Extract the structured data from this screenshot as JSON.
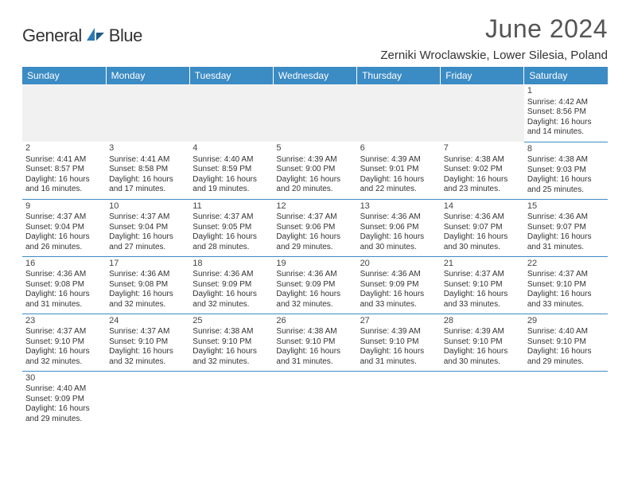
{
  "brand": {
    "name_a": "General",
    "name_b": "Blue"
  },
  "title": "June 2024",
  "location": "Zerniki Wroclawskie, Lower Silesia, Poland",
  "colors": {
    "header_bg": "#3b8bc4",
    "header_fg": "#ffffff",
    "cell_border": "#3b8bc4",
    "text": "#333333",
    "title_fg": "#555555",
    "empty_row_bg": "#f1f1f1"
  },
  "day_headers": [
    "Sunday",
    "Monday",
    "Tuesday",
    "Wednesday",
    "Thursday",
    "Friday",
    "Saturday"
  ],
  "weeks": [
    [
      null,
      null,
      null,
      null,
      null,
      null,
      {
        "d": "1",
        "sr": "Sunrise: 4:42 AM",
        "ss": "Sunset: 8:56 PM",
        "dl1": "Daylight: 16 hours",
        "dl2": "and 14 minutes."
      }
    ],
    [
      {
        "d": "2",
        "sr": "Sunrise: 4:41 AM",
        "ss": "Sunset: 8:57 PM",
        "dl1": "Daylight: 16 hours",
        "dl2": "and 16 minutes."
      },
      {
        "d": "3",
        "sr": "Sunrise: 4:41 AM",
        "ss": "Sunset: 8:58 PM",
        "dl1": "Daylight: 16 hours",
        "dl2": "and 17 minutes."
      },
      {
        "d": "4",
        "sr": "Sunrise: 4:40 AM",
        "ss": "Sunset: 8:59 PM",
        "dl1": "Daylight: 16 hours",
        "dl2": "and 19 minutes."
      },
      {
        "d": "5",
        "sr": "Sunrise: 4:39 AM",
        "ss": "Sunset: 9:00 PM",
        "dl1": "Daylight: 16 hours",
        "dl2": "and 20 minutes."
      },
      {
        "d": "6",
        "sr": "Sunrise: 4:39 AM",
        "ss": "Sunset: 9:01 PM",
        "dl1": "Daylight: 16 hours",
        "dl2": "and 22 minutes."
      },
      {
        "d": "7",
        "sr": "Sunrise: 4:38 AM",
        "ss": "Sunset: 9:02 PM",
        "dl1": "Daylight: 16 hours",
        "dl2": "and 23 minutes."
      },
      {
        "d": "8",
        "sr": "Sunrise: 4:38 AM",
        "ss": "Sunset: 9:03 PM",
        "dl1": "Daylight: 16 hours",
        "dl2": "and 25 minutes."
      }
    ],
    [
      {
        "d": "9",
        "sr": "Sunrise: 4:37 AM",
        "ss": "Sunset: 9:04 PM",
        "dl1": "Daylight: 16 hours",
        "dl2": "and 26 minutes."
      },
      {
        "d": "10",
        "sr": "Sunrise: 4:37 AM",
        "ss": "Sunset: 9:04 PM",
        "dl1": "Daylight: 16 hours",
        "dl2": "and 27 minutes."
      },
      {
        "d": "11",
        "sr": "Sunrise: 4:37 AM",
        "ss": "Sunset: 9:05 PM",
        "dl1": "Daylight: 16 hours",
        "dl2": "and 28 minutes."
      },
      {
        "d": "12",
        "sr": "Sunrise: 4:37 AM",
        "ss": "Sunset: 9:06 PM",
        "dl1": "Daylight: 16 hours",
        "dl2": "and 29 minutes."
      },
      {
        "d": "13",
        "sr": "Sunrise: 4:36 AM",
        "ss": "Sunset: 9:06 PM",
        "dl1": "Daylight: 16 hours",
        "dl2": "and 30 minutes."
      },
      {
        "d": "14",
        "sr": "Sunrise: 4:36 AM",
        "ss": "Sunset: 9:07 PM",
        "dl1": "Daylight: 16 hours",
        "dl2": "and 30 minutes."
      },
      {
        "d": "15",
        "sr": "Sunrise: 4:36 AM",
        "ss": "Sunset: 9:07 PM",
        "dl1": "Daylight: 16 hours",
        "dl2": "and 31 minutes."
      }
    ],
    [
      {
        "d": "16",
        "sr": "Sunrise: 4:36 AM",
        "ss": "Sunset: 9:08 PM",
        "dl1": "Daylight: 16 hours",
        "dl2": "and 31 minutes."
      },
      {
        "d": "17",
        "sr": "Sunrise: 4:36 AM",
        "ss": "Sunset: 9:08 PM",
        "dl1": "Daylight: 16 hours",
        "dl2": "and 32 minutes."
      },
      {
        "d": "18",
        "sr": "Sunrise: 4:36 AM",
        "ss": "Sunset: 9:09 PM",
        "dl1": "Daylight: 16 hours",
        "dl2": "and 32 minutes."
      },
      {
        "d": "19",
        "sr": "Sunrise: 4:36 AM",
        "ss": "Sunset: 9:09 PM",
        "dl1": "Daylight: 16 hours",
        "dl2": "and 32 minutes."
      },
      {
        "d": "20",
        "sr": "Sunrise: 4:36 AM",
        "ss": "Sunset: 9:09 PM",
        "dl1": "Daylight: 16 hours",
        "dl2": "and 33 minutes."
      },
      {
        "d": "21",
        "sr": "Sunrise: 4:37 AM",
        "ss": "Sunset: 9:10 PM",
        "dl1": "Daylight: 16 hours",
        "dl2": "and 33 minutes."
      },
      {
        "d": "22",
        "sr": "Sunrise: 4:37 AM",
        "ss": "Sunset: 9:10 PM",
        "dl1": "Daylight: 16 hours",
        "dl2": "and 33 minutes."
      }
    ],
    [
      {
        "d": "23",
        "sr": "Sunrise: 4:37 AM",
        "ss": "Sunset: 9:10 PM",
        "dl1": "Daylight: 16 hours",
        "dl2": "and 32 minutes."
      },
      {
        "d": "24",
        "sr": "Sunrise: 4:37 AM",
        "ss": "Sunset: 9:10 PM",
        "dl1": "Daylight: 16 hours",
        "dl2": "and 32 minutes."
      },
      {
        "d": "25",
        "sr": "Sunrise: 4:38 AM",
        "ss": "Sunset: 9:10 PM",
        "dl1": "Daylight: 16 hours",
        "dl2": "and 32 minutes."
      },
      {
        "d": "26",
        "sr": "Sunrise: 4:38 AM",
        "ss": "Sunset: 9:10 PM",
        "dl1": "Daylight: 16 hours",
        "dl2": "and 31 minutes."
      },
      {
        "d": "27",
        "sr": "Sunrise: 4:39 AM",
        "ss": "Sunset: 9:10 PM",
        "dl1": "Daylight: 16 hours",
        "dl2": "and 31 minutes."
      },
      {
        "d": "28",
        "sr": "Sunrise: 4:39 AM",
        "ss": "Sunset: 9:10 PM",
        "dl1": "Daylight: 16 hours",
        "dl2": "and 30 minutes."
      },
      {
        "d": "29",
        "sr": "Sunrise: 4:40 AM",
        "ss": "Sunset: 9:10 PM",
        "dl1": "Daylight: 16 hours",
        "dl2": "and 29 minutes."
      }
    ],
    [
      {
        "d": "30",
        "sr": "Sunrise: 4:40 AM",
        "ss": "Sunset: 9:09 PM",
        "dl1": "Daylight: 16 hours",
        "dl2": "and 29 minutes."
      },
      null,
      null,
      null,
      null,
      null,
      null
    ]
  ]
}
